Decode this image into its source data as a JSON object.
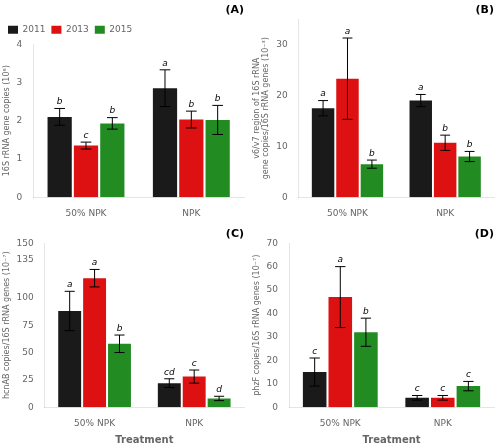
{
  "chart_data": [
    {
      "type": "bar",
      "title": "(A)",
      "categories": [
        "50% NPK",
        "NPK"
      ],
      "series": [
        {
          "name": "2011",
          "color": "#1a1a1a",
          "values": [
            2.1,
            2.85
          ],
          "errors": [
            0.22,
            0.48
          ],
          "letters": [
            "b",
            "a"
          ]
        },
        {
          "name": "2013",
          "color": "#dd1111",
          "values": [
            1.35,
            2.03
          ],
          "errors": [
            0.09,
            0.22
          ],
          "letters": [
            "c",
            "b"
          ]
        },
        {
          "name": "2015",
          "color": "#228B22",
          "values": [
            1.93,
            2.02
          ],
          "errors": [
            0.15,
            0.38
          ],
          "letters": [
            "b",
            "b"
          ]
        }
      ],
      "ylabel": "16S rRNA gene copies (10⁸)",
      "ylim": [
        0,
        4
      ],
      "yticks": [
        0,
        1,
        2,
        3,
        4
      ],
      "grid": false,
      "legend": "upper left"
    },
    {
      "type": "bar",
      "title": "(B)",
      "categories": [
        "50% NPK",
        "NPK"
      ],
      "series": [
        {
          "name": "2011",
          "color": "#1a1a1a",
          "values": [
            17.5,
            19.0
          ],
          "errors": [
            1.5,
            1.2
          ],
          "letters": [
            "a",
            "a"
          ]
        },
        {
          "name": "2013",
          "color": "#dd1111",
          "values": [
            23.3,
            10.7
          ],
          "errors": [
            8.0,
            1.5
          ],
          "letters": [
            "a",
            "b"
          ]
        },
        {
          "name": "2015",
          "color": "#228B22",
          "values": [
            6.5,
            8.0
          ],
          "errors": [
            0.8,
            1.0
          ],
          "letters": [
            "b",
            "b"
          ]
        }
      ],
      "ylabel": "v6/v7 region of 16S rRNA\ngene copies/16S rRNA genes (10⁻³)",
      "ylim": [
        0,
        35
      ],
      "yticks": [
        0,
        10,
        20,
        30
      ],
      "grid": false
    },
    {
      "type": "bar",
      "title": "(C)",
      "categories": [
        "50% NPK",
        "NPK"
      ],
      "series": [
        {
          "name": "2011",
          "color": "#1a1a1a",
          "values": [
            88,
            22
          ],
          "errors": [
            18,
            4
          ],
          "letters": [
            "a",
            "cd"
          ]
        },
        {
          "name": "2013",
          "color": "#dd1111",
          "values": [
            118,
            28
          ],
          "errors": [
            8,
            6
          ],
          "letters": [
            "a",
            "c"
          ]
        },
        {
          "name": "2015",
          "color": "#228B22",
          "values": [
            58,
            8
          ],
          "errors": [
            8,
            2
          ],
          "letters": [
            "b",
            "d"
          ]
        }
      ],
      "xlabel": "Treatment",
      "ylabel": "hcnAB copies/16S rRNA genes (10⁻⁷)",
      "ylim": [
        0,
        150
      ],
      "yticks": [
        0,
        25,
        50,
        75,
        100,
        135,
        150
      ],
      "grid": false
    },
    {
      "type": "bar",
      "title": "(D)",
      "categories": [
        "50% NPK",
        "NPK"
      ],
      "series": [
        {
          "name": "2011",
          "color": "#1a1a1a",
          "values": [
            15,
            4
          ],
          "errors": [
            6,
            1
          ],
          "letters": [
            "c",
            "c"
          ]
        },
        {
          "name": "2013",
          "color": "#dd1111",
          "values": [
            47,
            4
          ],
          "errors": [
            13,
            1
          ],
          "letters": [
            "a",
            "c"
          ]
        },
        {
          "name": "2015",
          "color": "#228B22",
          "values": [
            32,
            9
          ],
          "errors": [
            6,
            2
          ],
          "letters": [
            "b",
            "c"
          ]
        }
      ],
      "xlabel": "Treatment",
      "ylabel": "phzF copies/16S rRNA genes (10⁻⁷)",
      "ylim": [
        0,
        70
      ],
      "yticks": [
        0,
        10,
        20,
        30,
        40,
        50,
        60,
        70
      ],
      "grid": false
    }
  ]
}
